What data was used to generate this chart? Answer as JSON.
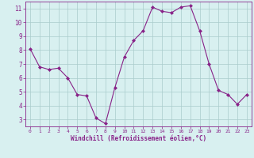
{
  "x": [
    0,
    1,
    2,
    3,
    4,
    5,
    6,
    7,
    8,
    9,
    10,
    11,
    12,
    13,
    14,
    15,
    16,
    17,
    18,
    19,
    20,
    21,
    22,
    23
  ],
  "y": [
    8.1,
    6.8,
    6.6,
    6.7,
    6.0,
    4.8,
    4.7,
    3.1,
    2.7,
    5.3,
    7.5,
    8.7,
    9.4,
    11.1,
    10.8,
    10.7,
    11.1,
    11.2,
    9.4,
    7.0,
    5.1,
    4.8,
    4.1,
    4.8
  ],
  "line_color": "#882288",
  "marker": "D",
  "marker_size": 2.0,
  "bg_color": "#d8f0f0",
  "grid_color": "#aacccc",
  "xlabel": "Windchill (Refroidissement éolien,°C)",
  "xlabel_color": "#882288",
  "tick_color": "#882288",
  "spine_color": "#882288",
  "ylim": [
    2.5,
    11.5
  ],
  "xlim": [
    -0.5,
    23.5
  ],
  "yticks": [
    3,
    4,
    5,
    6,
    7,
    8,
    9,
    10,
    11
  ],
  "xticks": [
    0,
    1,
    2,
    3,
    4,
    5,
    6,
    7,
    8,
    9,
    10,
    11,
    12,
    13,
    14,
    15,
    16,
    17,
    18,
    19,
    20,
    21,
    22,
    23
  ]
}
